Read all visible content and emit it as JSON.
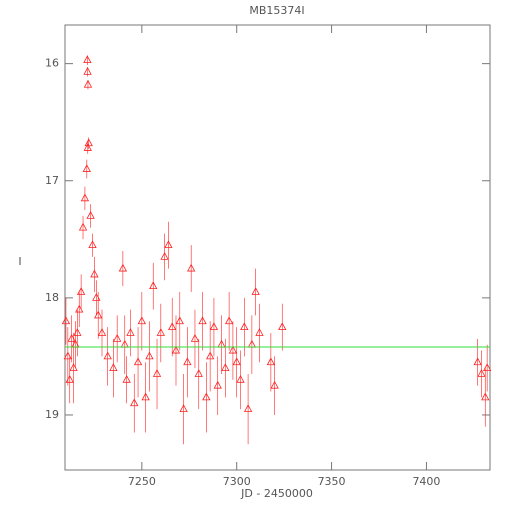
{
  "chart_data": {
    "type": "scatter",
    "title": "MB15374I",
    "x_label": "JD - 2450000",
    "y_label": "I",
    "xlim": [
      7209.5,
      7433.5
    ],
    "ylim": [
      15.67,
      19.47
    ],
    "y_inverted": true,
    "xticks": [
      7250,
      7300,
      7350,
      7400
    ],
    "yticks": [
      16,
      17,
      18,
      19
    ],
    "reference_line": {
      "value": 18.42,
      "color": "#33dd33"
    },
    "series": [
      {
        "color": "#ff2020",
        "x": [
          7210,
          7211,
          7212,
          7213,
          7214,
          7215,
          7216,
          7217,
          7218,
          7219,
          7220,
          7221,
          7221.5,
          7222,
          7221.3,
          7221.4,
          7221.6,
          7223,
          7224,
          7225,
          7226,
          7227,
          7229,
          7232,
          7235,
          7237,
          7240,
          7241,
          7242,
          7244,
          7246,
          7248,
          7250,
          7252,
          7254,
          7256,
          7258,
          7260,
          7262,
          7264,
          7266,
          7268,
          7270,
          7272,
          7274,
          7276,
          7278,
          7280,
          7282,
          7284,
          7286,
          7288,
          7290,
          7292,
          7294,
          7296,
          7298,
          7300,
          7302,
          7304,
          7306,
          7308,
          7310,
          7312,
          7318,
          7320,
          7324,
          7427,
          7429,
          7431,
          7432
        ],
        "values": [
          18.2,
          18.5,
          18.7,
          18.35,
          18.6,
          18.4,
          18.3,
          18.1,
          17.95,
          17.4,
          17.15,
          16.9,
          16.72,
          16.68,
          15.97,
          16.07,
          16.18,
          17.3,
          17.55,
          17.8,
          18.0,
          18.15,
          18.3,
          18.5,
          18.6,
          18.35,
          17.75,
          18.4,
          18.7,
          18.3,
          18.9,
          18.55,
          18.2,
          18.85,
          18.5,
          17.9,
          18.65,
          18.3,
          17.65,
          17.55,
          18.25,
          18.45,
          18.2,
          18.95,
          18.55,
          17.75,
          18.35,
          18.65,
          18.2,
          18.85,
          18.5,
          18.25,
          18.75,
          18.4,
          18.6,
          18.2,
          18.45,
          18.55,
          18.7,
          18.25,
          18.95,
          18.4,
          17.95,
          18.3,
          18.55,
          18.75,
          18.25,
          18.55,
          18.65,
          18.85,
          18.6
        ],
        "errors": [
          0.2,
          0.25,
          0.2,
          0.2,
          0.3,
          0.2,
          0.2,
          0.15,
          0.15,
          0.1,
          0.1,
          0.08,
          0.05,
          0.05,
          0.04,
          0.04,
          0.04,
          0.1,
          0.1,
          0.15,
          0.15,
          0.2,
          0.2,
          0.25,
          0.25,
          0.2,
          0.15,
          0.25,
          0.2,
          0.2,
          0.25,
          0.3,
          0.25,
          0.3,
          0.3,
          0.2,
          0.3,
          0.25,
          0.2,
          0.2,
          0.25,
          0.3,
          0.25,
          0.3,
          0.3,
          0.2,
          0.25,
          0.3,
          0.25,
          0.3,
          0.3,
          0.25,
          0.25,
          0.25,
          0.25,
          0.25,
          0.25,
          0.3,
          0.25,
          0.25,
          0.3,
          0.25,
          0.2,
          0.25,
          0.25,
          0.25,
          0.2,
          0.2,
          0.2,
          0.25,
          0.2
        ]
      }
    ]
  }
}
